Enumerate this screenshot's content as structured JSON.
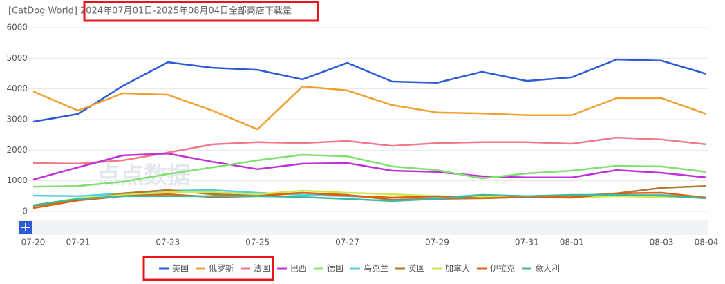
{
  "chart_data": {
    "type": "line",
    "title": "[CatDog World] 2024年07月01日-2025年08月04日全部商店下载量",
    "watermark": "点点数据",
    "categories": [
      "07-20",
      "07-21",
      null,
      "07-23",
      null,
      "07-25",
      null,
      "07-27",
      null,
      "07-29",
      null,
      "07-31",
      "08-01",
      null,
      "08-03",
      "08-04"
    ],
    "ylim": [
      0,
      6000
    ],
    "yticks": [
      0,
      1000,
      2000,
      3000,
      4000,
      5000,
      6000
    ],
    "grid": true,
    "series": [
      {
        "name": "美国",
        "color": "#2c5bd6",
        "values": [
          2930,
          3180,
          4100,
          4870,
          4690,
          4620,
          4310,
          4850,
          4240,
          4200,
          4560,
          4260,
          4380,
          4960,
          4920,
          4490
        ]
      },
      {
        "name": "俄罗斯",
        "color": "#f0a030",
        "values": [
          3920,
          3290,
          3860,
          3810,
          3290,
          2680,
          4080,
          3950,
          3470,
          3230,
          3200,
          3140,
          3140,
          3700,
          3700,
          3180
        ]
      },
      {
        "name": "法国",
        "color": "#f07888",
        "values": [
          1580,
          1560,
          1670,
          1920,
          2190,
          2260,
          2230,
          2300,
          2140,
          2230,
          2260,
          2260,
          2210,
          2410,
          2350,
          2190
        ]
      },
      {
        "name": "巴西",
        "color": "#c030d8",
        "values": [
          1040,
          1440,
          1830,
          1890,
          1620,
          1380,
          1560,
          1580,
          1330,
          1290,
          1150,
          1110,
          1110,
          1350,
          1260,
          1110
        ]
      },
      {
        "name": "德国",
        "color": "#80e070",
        "values": [
          810,
          830,
          970,
          1220,
          1440,
          1670,
          1850,
          1800,
          1470,
          1350,
          1080,
          1240,
          1330,
          1490,
          1470,
          1290
        ]
      },
      {
        "name": "乌克兰",
        "color": "#50d0e0",
        "values": [
          520,
          500,
          590,
          680,
          700,
          610,
          540,
          500,
          450,
          450,
          540,
          500,
          520,
          520,
          540,
          430
        ]
      },
      {
        "name": "英国",
        "color": "#b07830",
        "values": [
          180,
          360,
          590,
          700,
          560,
          520,
          610,
          540,
          380,
          410,
          430,
          470,
          500,
          590,
          770,
          830
        ]
      },
      {
        "name": "加拿大",
        "color": "#d0e850",
        "values": [
          200,
          430,
          540,
          630,
          630,
          560,
          680,
          610,
          560,
          500,
          470,
          470,
          450,
          500,
          470,
          450
        ]
      },
      {
        "name": "伊拉克",
        "color": "#e06010",
        "values": [
          110,
          360,
          500,
          560,
          470,
          500,
          610,
          520,
          450,
          500,
          430,
          470,
          450,
          590,
          610,
          450
        ]
      },
      {
        "name": "意大利",
        "color": "#40b8a0",
        "values": [
          200,
          410,
          500,
          500,
          500,
          500,
          470,
          410,
          340,
          410,
          540,
          500,
          540,
          540,
          520,
          430
        ]
      }
    ]
  }
}
